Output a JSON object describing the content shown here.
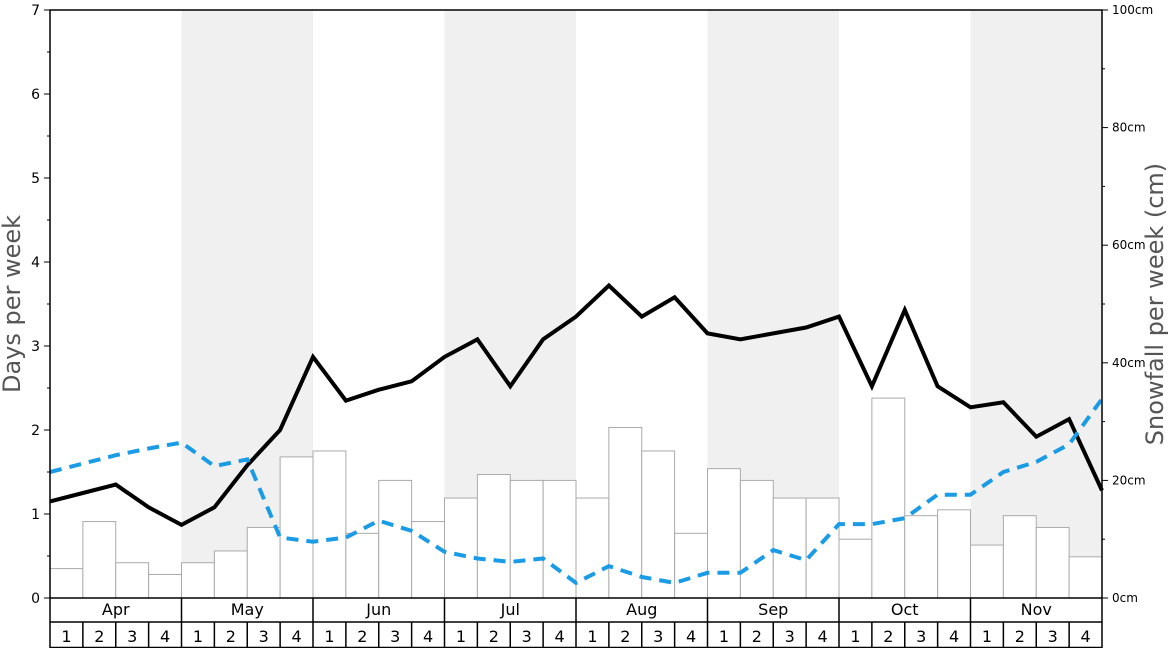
{
  "chart_data": {
    "type": "bar",
    "y_left": {
      "label": "Days per week",
      "min": 0,
      "max": 7,
      "ticks": [
        "0",
        "1",
        "2",
        "3",
        "4",
        "5",
        "6",
        "7"
      ]
    },
    "y_right": {
      "label": "Snowfall per week (cm)",
      "min": 0,
      "max": 100,
      "ticks": [
        "0cm",
        "20cm",
        "40cm",
        "60cm",
        "80cm",
        "100cm"
      ]
    },
    "months": [
      "Apr",
      "May",
      "Jun",
      "Jul",
      "Aug",
      "Sep",
      "Oct",
      "Nov"
    ],
    "weeks": [
      "1",
      "2",
      "3",
      "4"
    ],
    "month_shading": [
      "white",
      "gray",
      "white",
      "gray",
      "white",
      "gray",
      "white",
      "gray"
    ],
    "shade_color": "#f0f0f0",
    "snowfall_bars_cm": [
      5,
      13,
      6,
      4,
      6,
      8,
      12,
      24,
      25,
      11,
      20,
      13,
      17,
      21,
      20,
      20,
      17,
      29,
      25,
      11,
      22,
      20,
      17,
      17,
      10,
      34,
      14,
      15,
      9,
      14,
      12,
      7
    ],
    "series": [
      {
        "style": "solid",
        "color": "#000000",
        "axis": "left",
        "values": [
          1.15,
          1.25,
          1.35,
          1.08,
          0.87,
          1.08,
          1.58,
          2.0,
          2.87,
          2.35,
          2.48,
          2.58,
          2.87,
          3.08,
          2.52,
          3.08,
          3.35,
          3.72,
          3.35,
          3.58,
          3.15,
          3.08,
          3.15,
          3.22,
          3.35,
          2.52,
          3.43,
          2.52,
          2.27,
          2.33,
          1.92,
          2.13,
          1.28
        ]
      },
      {
        "style": "dashed",
        "color": "#1a9be6",
        "axis": "left",
        "values": [
          1.5,
          1.6,
          1.7,
          1.78,
          1.85,
          1.57,
          1.65,
          0.72,
          0.67,
          0.72,
          0.92,
          0.8,
          0.55,
          0.47,
          0.43,
          0.47,
          0.18,
          0.38,
          0.25,
          0.18,
          0.3,
          0.3,
          0.57,
          0.45,
          0.88,
          0.88,
          0.95,
          1.23,
          1.23,
          1.5,
          1.62,
          1.83,
          2.37
        ]
      }
    ]
  }
}
